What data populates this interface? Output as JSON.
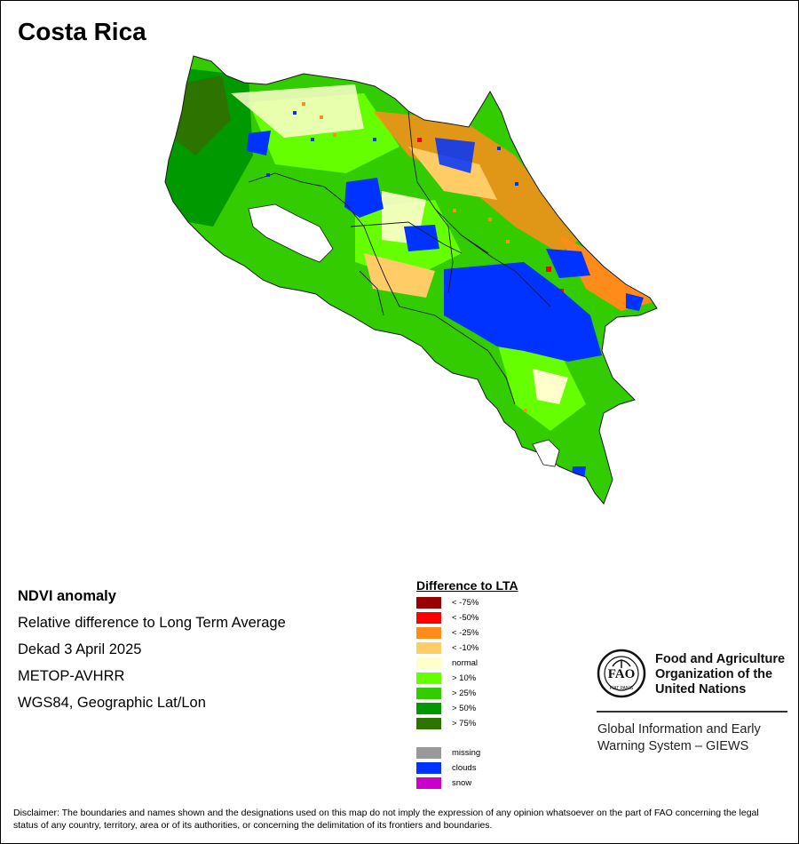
{
  "map": {
    "title": "Costa Rica",
    "info_lines": [
      "NDVI anomaly",
      "Relative difference to Long Term Average",
      "Dekad 3 April 2025",
      "METOP-AVHRR",
      "WGS84, Geographic Lat/Lon"
    ]
  },
  "legend": {
    "title": "Difference to LTA",
    "classes": [
      {
        "label": "< -75%",
        "color": "#990000"
      },
      {
        "label": "< -50%",
        "color": "#ff0000"
      },
      {
        "label": "< -25%",
        "color": "#ff8c1a"
      },
      {
        "label": "< -10%",
        "color": "#ffcc66"
      },
      {
        "label": "normal",
        "color": "#ffffcc"
      },
      {
        "label": "> 10%",
        "color": "#66ff00"
      },
      {
        "label": "> 25%",
        "color": "#33cc00"
      },
      {
        "label": "> 50%",
        "color": "#009900"
      },
      {
        "label": "> 75%",
        "color": "#2d7300"
      }
    ],
    "extra": [
      {
        "label": "missing",
        "color": "#999999"
      },
      {
        "label": "clouds",
        "color": "#0033ff"
      },
      {
        "label": "snow",
        "color": "#cc00cc"
      }
    ]
  },
  "fao": {
    "name_lines": [
      "Food and Agriculture",
      "Organization of the",
      "United Nations"
    ],
    "logo_text": "FIAT PANIS",
    "giews_lines": [
      "Global Information and Early",
      "Warning System – GIEWS"
    ]
  },
  "disclaimer": "Disclaimer: The boundaries and names shown and the designations used on this map do not imply the expression of any opinion whatsoever on the part of FAO concerning the legal status of any country, territory, area or of its authorities, or concerning the delimitation of its frontiers and boundaries."
}
